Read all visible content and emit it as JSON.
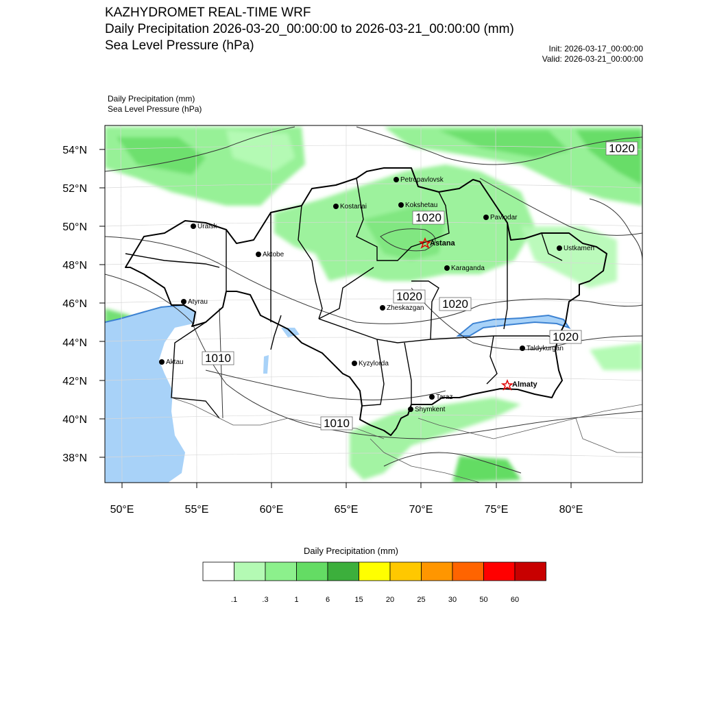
{
  "header": {
    "line1": "KAZHYDROMET REAL-TIME WRF",
    "line2": "Daily Precipitation 2026-03-20_00:00:00 to 2026-03-21_00:00:00 (mm)",
    "line3": "Sea Level Pressure  (hPa)",
    "init": "Init: 2026-03-17_00:00:00",
    "valid": "Valid: 2026-03-21_00:00:00"
  },
  "subtitle": {
    "line1": "Daily Precipitation   (mm)",
    "line2": "Sea Level Pressure   (hPa)"
  },
  "map": {
    "lon_labels": [
      "50°E",
      "55°E",
      "60°E",
      "65°E",
      "70°E",
      "75°E",
      "80°E"
    ],
    "lat_labels": [
      "54°N",
      "52°N",
      "50°N",
      "48°N",
      "46°N",
      "44°N",
      "42°N",
      "40°N",
      "38°N"
    ],
    "cities": [
      {
        "name": "Petropavlovsk",
        "capital": false
      },
      {
        "name": "Kostanai",
        "capital": false
      },
      {
        "name": "Kokshetau",
        "capital": false
      },
      {
        "name": "Pavlodar",
        "capital": false
      },
      {
        "name": "Uralsk",
        "capital": false
      },
      {
        "name": "Astana",
        "capital": true
      },
      {
        "name": "Ustkamen",
        "capital": false
      },
      {
        "name": "Aktobe",
        "capital": false
      },
      {
        "name": "Karaganda",
        "capital": false
      },
      {
        "name": "Atyrau",
        "capital": false
      },
      {
        "name": "Zheskazgan",
        "capital": false
      },
      {
        "name": "Aktau",
        "capital": false
      },
      {
        "name": "Kyzylorda",
        "capital": false
      },
      {
        "name": "Taldykurgan",
        "capital": false
      },
      {
        "name": "Almaty",
        "capital": true
      },
      {
        "name": "Taraz",
        "capital": false
      },
      {
        "name": "Shymkent",
        "capital": false
      }
    ],
    "contour_labels": [
      "1020",
      "1020",
      "1020",
      "1020",
      "1020",
      "1010",
      "1010"
    ]
  },
  "colorbar": {
    "title": "Daily Precipitation (mm)",
    "ticks": [
      ".1",
      ".3",
      "1",
      "6",
      "15",
      "20",
      "25",
      "30",
      "50",
      "60"
    ],
    "colors": [
      "#ffffff",
      "#b4fab4",
      "#8cf08c",
      "#64dc64",
      "#3caf3c",
      "#ffff00",
      "#ffc800",
      "#ff9600",
      "#ff6400",
      "#ff0000",
      "#c80000"
    ]
  },
  "colors": {
    "water": "#a8d2f8",
    "lake_edge": "#3c82d2",
    "border": "#000000"
  }
}
